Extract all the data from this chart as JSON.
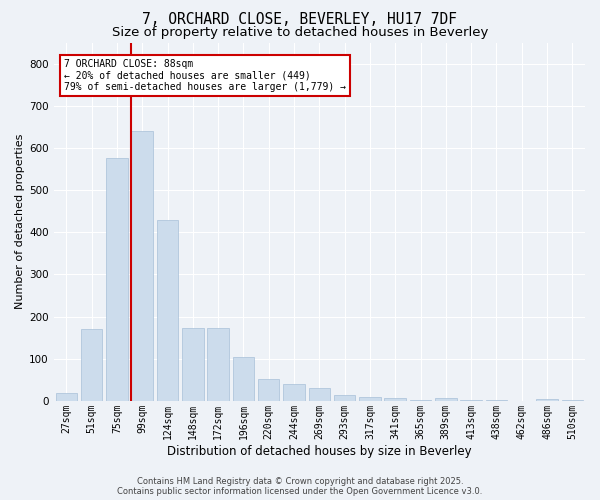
{
  "title": "7, ORCHARD CLOSE, BEVERLEY, HU17 7DF",
  "subtitle": "Size of property relative to detached houses in Beverley",
  "xlabel": "Distribution of detached houses by size in Beverley",
  "ylabel": "Number of detached properties",
  "footnote1": "Contains HM Land Registry data © Crown copyright and database right 2025.",
  "footnote2": "Contains public sector information licensed under the Open Government Licence v3.0.",
  "categories": [
    "27sqm",
    "51sqm",
    "75sqm",
    "99sqm",
    "124sqm",
    "148sqm",
    "172sqm",
    "196sqm",
    "220sqm",
    "244sqm",
    "269sqm",
    "293sqm",
    "317sqm",
    "341sqm",
    "365sqm",
    "389sqm",
    "413sqm",
    "438sqm",
    "462sqm",
    "486sqm",
    "510sqm"
  ],
  "values": [
    18,
    170,
    575,
    640,
    430,
    173,
    172,
    103,
    52,
    40,
    30,
    14,
    10,
    8,
    3,
    7,
    2,
    1,
    0,
    5,
    2
  ],
  "bar_color": "#ccdcec",
  "bar_edge_color": "#a8c0d8",
  "vline_color": "#cc0000",
  "vline_pos": 2.575,
  "annotation_title": "7 ORCHARD CLOSE: 88sqm",
  "annotation_line2": "← 20% of detached houses are smaller (449)",
  "annotation_line3": "79% of semi-detached houses are larger (1,779) →",
  "annotation_box_color": "#cc0000",
  "ylim": [
    0,
    850
  ],
  "yticks": [
    0,
    100,
    200,
    300,
    400,
    500,
    600,
    700,
    800
  ],
  "background_color": "#eef2f7",
  "grid_color": "#ffffff",
  "title_fontsize": 10.5,
  "subtitle_fontsize": 9.5,
  "ylabel_fontsize": 8,
  "xlabel_fontsize": 8.5,
  "tick_fontsize": 7,
  "footnote_fontsize": 6,
  "annotation_fontsize": 7
}
